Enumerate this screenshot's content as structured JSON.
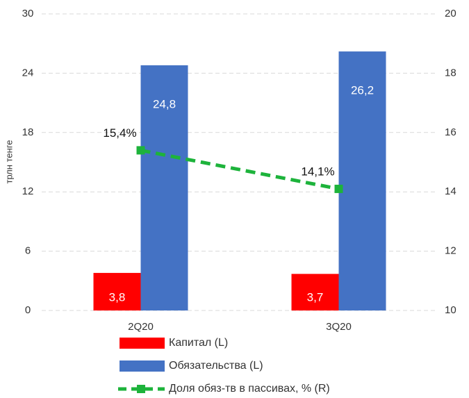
{
  "chart_data": {
    "type": "bar",
    "y_label": "трлн тенге",
    "categories": [
      "2Q20",
      "3Q20"
    ],
    "ylim": [
      0,
      30
    ],
    "yticks": [
      0,
      6,
      12,
      18,
      24,
      30
    ],
    "y2lim": [
      10,
      20
    ],
    "y2ticks": [
      10,
      12,
      14,
      16,
      18,
      20
    ],
    "grid": true,
    "series": [
      {
        "name": "Капитал (L)",
        "color": "#ff0000",
        "values": [
          3.8,
          3.7
        ],
        "value_labels": [
          "3,8",
          "3,7"
        ]
      },
      {
        "name": "Обязательства (L)",
        "color": "#4472c4",
        "values": [
          24.8,
          26.2
        ],
        "value_labels": [
          "24,8",
          "26,2"
        ]
      },
      {
        "name": "Доля обяз-тв в пассивах, % (R)",
        "color": "#1db33b",
        "type": "line",
        "axis": "y2",
        "values": [
          15.4,
          14.1
        ],
        "value_labels": [
          "15,4%",
          "14,1%"
        ]
      }
    ]
  }
}
